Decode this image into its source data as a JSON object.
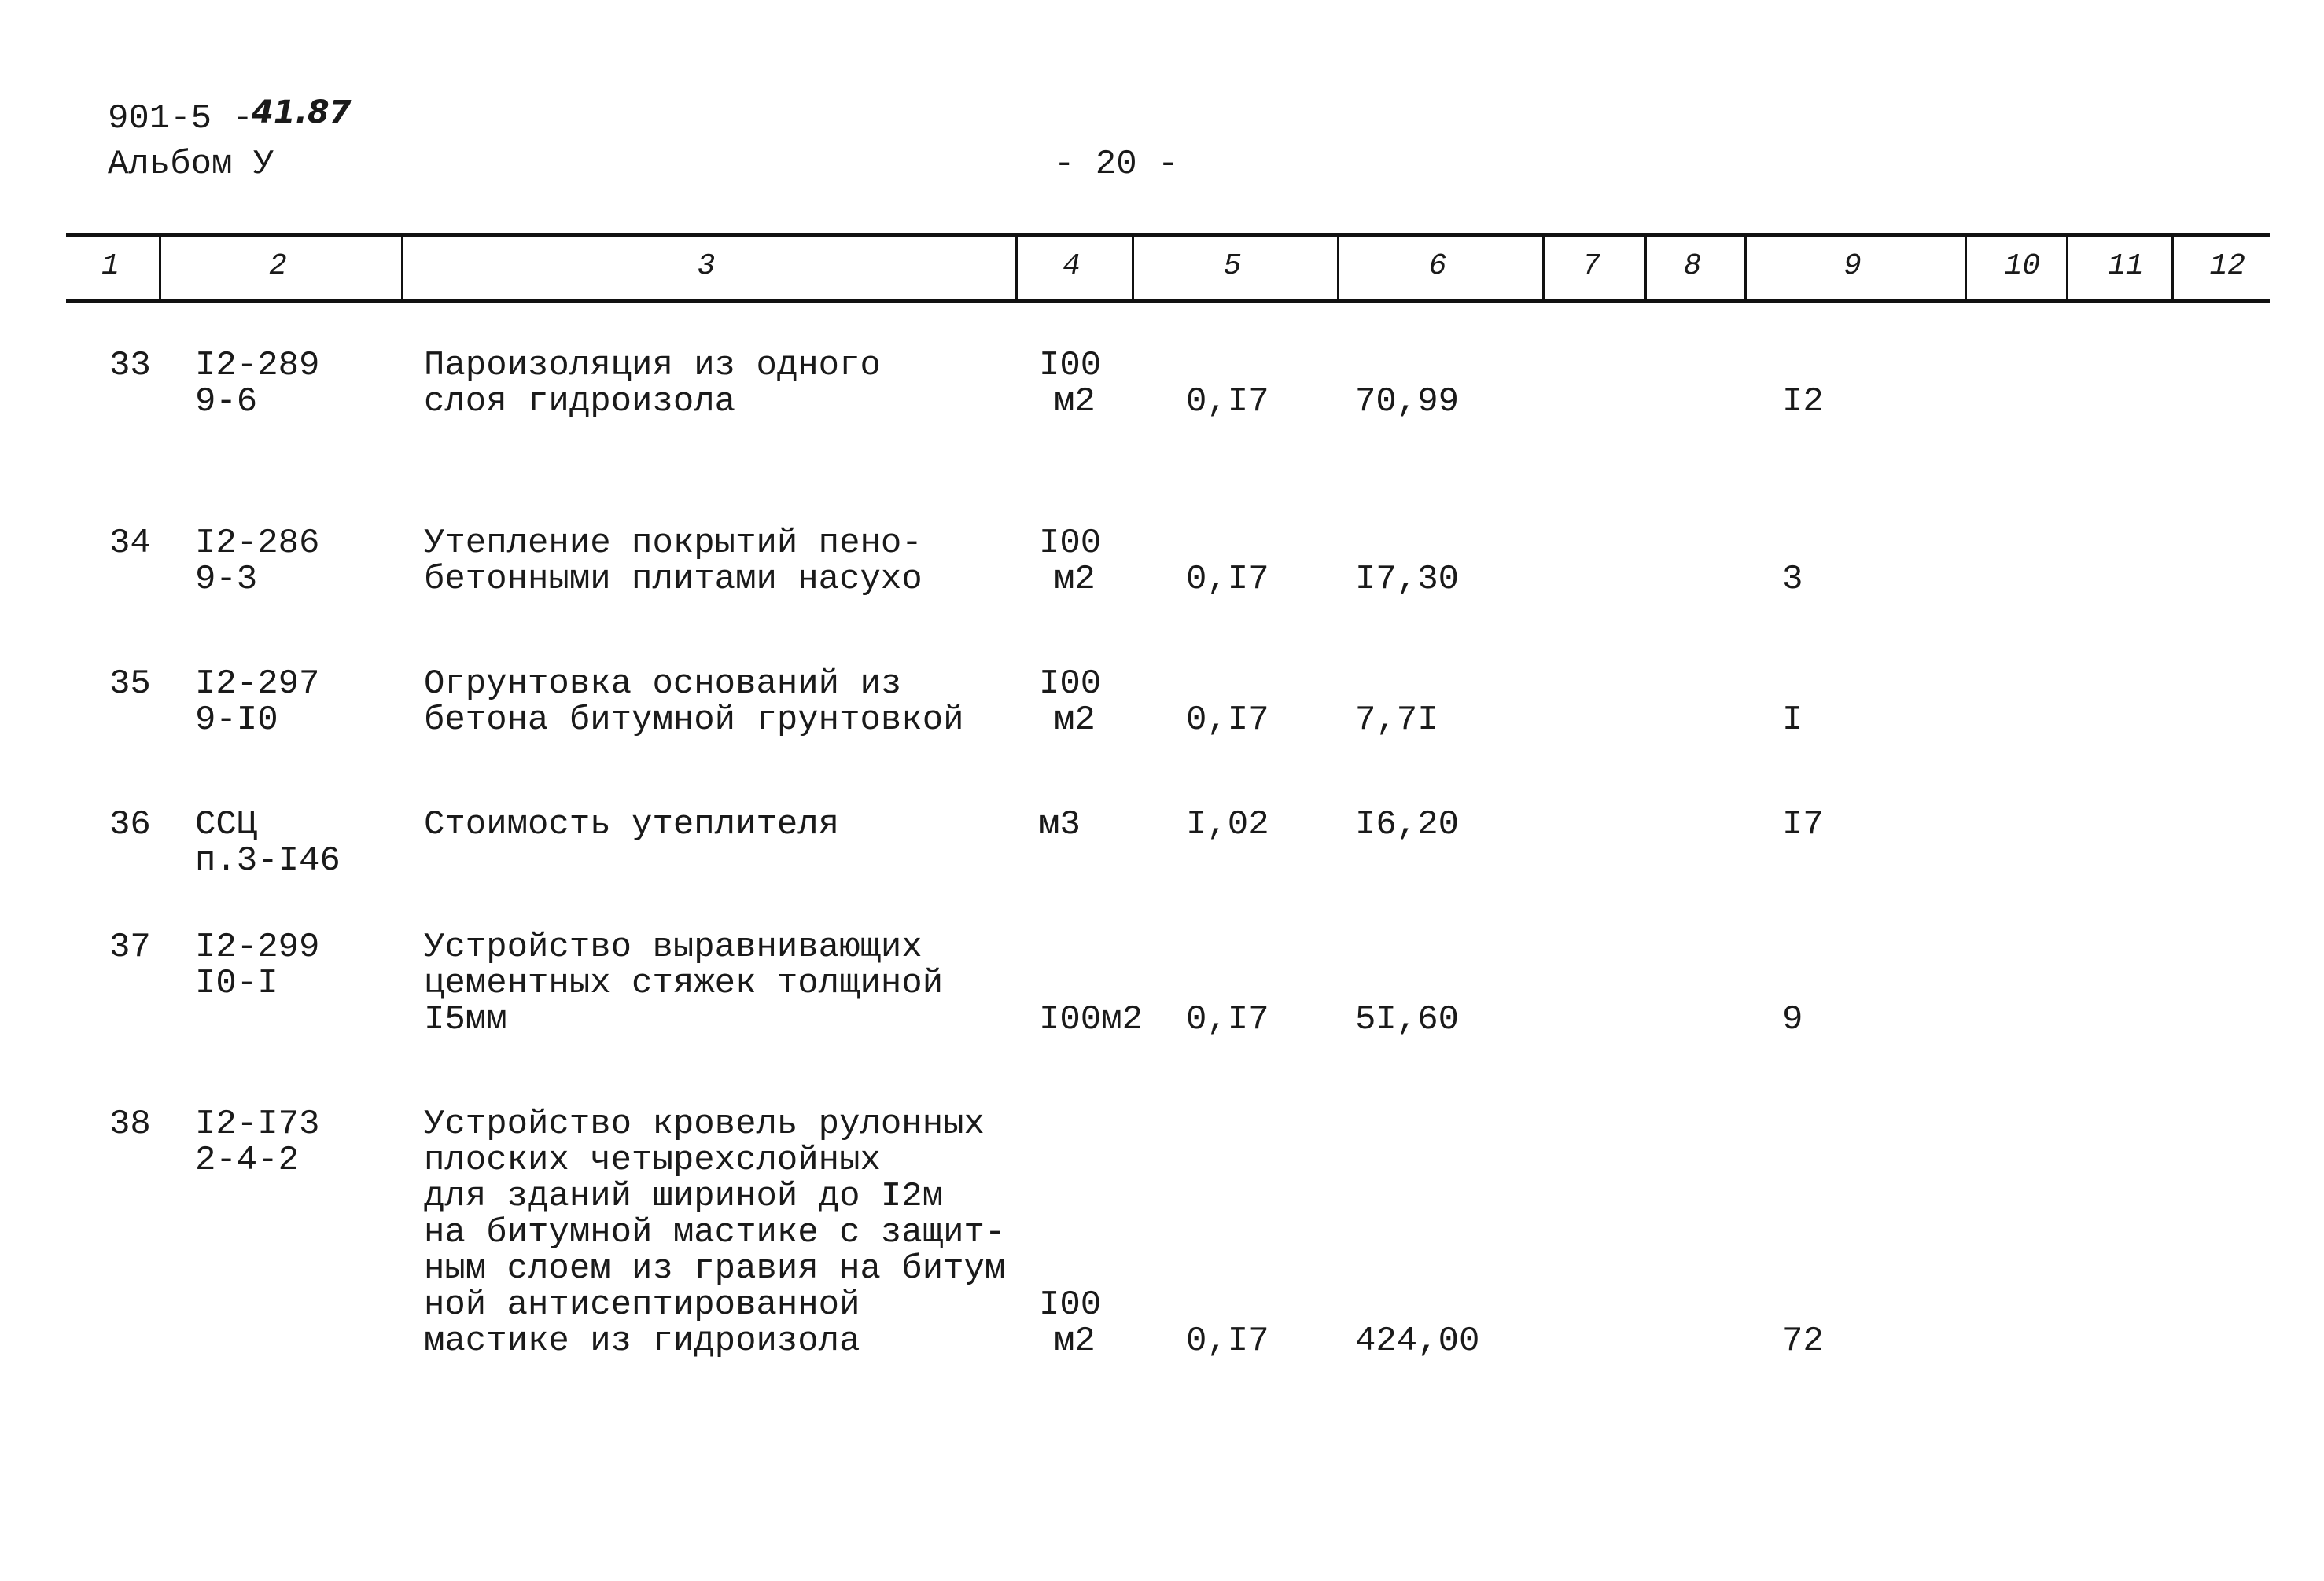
{
  "header": {
    "code": "901-5 -",
    "code_handwritten": "41.87",
    "album": "Альбом У",
    "page": "- 20 -"
  },
  "table": {
    "columns": [
      "1",
      "2",
      "3",
      "4",
      "5",
      "6",
      "7",
      "8",
      "9",
      "10",
      "11",
      "12"
    ],
    "rows": [
      {
        "num": "33",
        "code": [
          "I2-289",
          "9-6"
        ],
        "description": [
          "Пароизоляция из одного",
          "слоя гидроизола"
        ],
        "unit": [
          "I00",
          "м2"
        ],
        "quantity": "0,I7",
        "price": "70,99",
        "col9": "I2"
      },
      {
        "num": "34",
        "code": [
          "I2-286",
          "9-3"
        ],
        "description": [
          "Утепление покрытий пено-",
          "бетонными плитами насухо"
        ],
        "unit": [
          "I00",
          "м2"
        ],
        "quantity": "0,I7",
        "price": "I7,30",
        "col9": "3"
      },
      {
        "num": "35",
        "code": [
          "I2-297",
          "9-I0"
        ],
        "description": [
          "Огрунтовка оснований из",
          "бетона битумной грунтовкой"
        ],
        "unit": [
          "I00",
          "м2"
        ],
        "quantity": "0,I7",
        "price": "7,7I",
        "col9": "I"
      },
      {
        "num": "36",
        "code": [
          "ССЦ",
          "п.3-I46"
        ],
        "description": [
          "Стоимость утеплителя"
        ],
        "unit": [
          "м3"
        ],
        "quantity": "I,02",
        "price": "I6,20",
        "col9": "I7"
      },
      {
        "num": "37",
        "code": [
          "I2-299",
          "I0-I"
        ],
        "description": [
          "Устройство выравнивающих",
          "цементных стяжек толщиной",
          "I5мм"
        ],
        "unit": [
          "I00м2"
        ],
        "quantity": "0,I7",
        "price": "5I,60",
        "col9": "9"
      },
      {
        "num": "38",
        "code": [
          "I2-I73",
          "2-4-2"
        ],
        "description": [
          "Устройство кровель рулонных",
          "плоских четырехслойных",
          "для зданий шириной до I2м",
          "на битумной мастике с защит-",
          "ным слоем из гравия на битум",
          "ной антисептированной",
          "мастике из гидроизола"
        ],
        "unit": [
          "I00",
          "м2"
        ],
        "quantity": "0,I7",
        "price": "424,00",
        "col9": "72"
      }
    ]
  }
}
